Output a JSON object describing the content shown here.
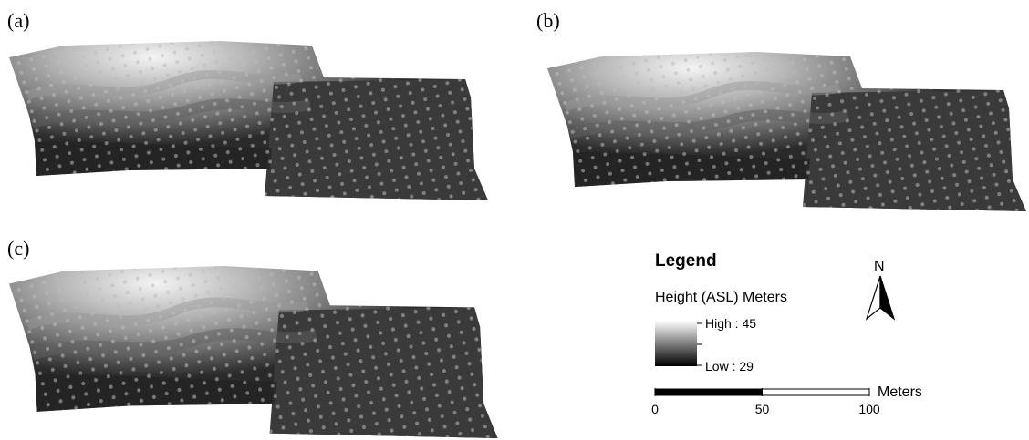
{
  "panels": [
    {
      "label": "(a)"
    },
    {
      "label": "(b)"
    },
    {
      "label": "(c)"
    }
  ],
  "legend": {
    "title": "Legend",
    "subtitle": "Height (ASL) Meters",
    "high": "High : 45",
    "low": "Low : 29"
  },
  "north_arrow": {
    "label": "N"
  },
  "scale_bar": {
    "unit": "Meters",
    "ticks": [
      0,
      50,
      100
    ]
  }
}
